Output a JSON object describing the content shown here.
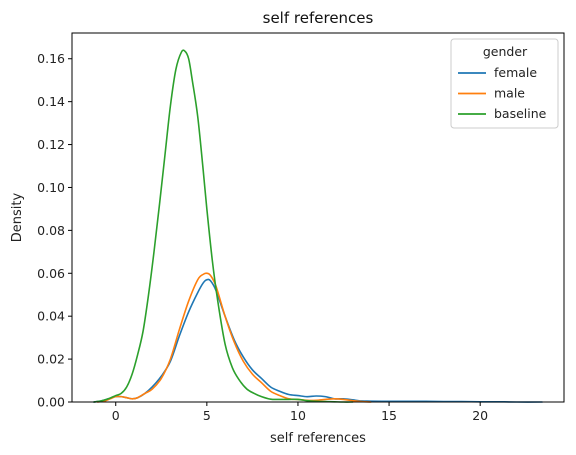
{
  "chart_data": {
    "type": "line",
    "title": "self references",
    "xlabel": "self references",
    "ylabel": "Density",
    "xlim": [
      -2.4,
      24.6
    ],
    "ylim": [
      0,
      0.172
    ],
    "xticks": [
      0,
      5,
      10,
      15,
      20
    ],
    "yticks": [
      0.0,
      0.02,
      0.04,
      0.06,
      0.08,
      0.1,
      0.12,
      0.14,
      0.16
    ],
    "ytick_labels": [
      "0.00",
      "0.02",
      "0.04",
      "0.06",
      "0.08",
      "0.10",
      "0.12",
      "0.14",
      "0.16"
    ],
    "grid": false,
    "legend": {
      "title": "gender",
      "placement": "top-right"
    },
    "series": [
      {
        "name": "female",
        "color": "#1f77b4",
        "x": [
          -1.2,
          -0.8,
          -0.4,
          0,
          0.3,
          0.6,
          0.9,
          1.2,
          1.6,
          2.0,
          2.5,
          3.0,
          3.5,
          4.0,
          4.5,
          4.8,
          5.0,
          5.2,
          5.5,
          6.0,
          6.5,
          7.0,
          7.5,
          8.0,
          8.5,
          9.0,
          9.5,
          10.0,
          10.5,
          11.0,
          11.5,
          12.0,
          12.5,
          13.0,
          13.5,
          14.0,
          15.0,
          16.0,
          17.0,
          18.0,
          19.0,
          20.0,
          21.0,
          22.0,
          23.4
        ],
        "y": [
          0.0,
          0.0005,
          0.0015,
          0.0025,
          0.0025,
          0.002,
          0.0015,
          0.002,
          0.004,
          0.007,
          0.012,
          0.019,
          0.031,
          0.042,
          0.051,
          0.0555,
          0.057,
          0.0565,
          0.052,
          0.04,
          0.029,
          0.021,
          0.015,
          0.011,
          0.007,
          0.005,
          0.0035,
          0.003,
          0.0025,
          0.0028,
          0.0025,
          0.0015,
          0.0015,
          0.001,
          0.0005,
          0.0004,
          0.0003,
          0.0003,
          0.0003,
          0.0002,
          0.0002,
          0.0001,
          0.0001,
          0.0,
          0.0
        ]
      },
      {
        "name": "male",
        "color": "#ff7f0e",
        "x": [
          -1.0,
          -0.6,
          -0.3,
          0,
          0.3,
          0.6,
          0.9,
          1.2,
          1.6,
          2.0,
          2.5,
          3.0,
          3.5,
          4.0,
          4.5,
          4.8,
          5.0,
          5.2,
          5.5,
          6.0,
          6.5,
          7.0,
          7.5,
          8.0,
          8.5,
          9.0,
          9.5,
          10.0,
          10.5,
          11.0,
          11.5,
          12.0,
          12.5,
          13.0,
          13.5,
          14.0
        ],
        "y": [
          0.0,
          0.0005,
          0.0015,
          0.0025,
          0.0025,
          0.002,
          0.0015,
          0.002,
          0.004,
          0.006,
          0.011,
          0.02,
          0.034,
          0.047,
          0.057,
          0.0595,
          0.06,
          0.059,
          0.054,
          0.04,
          0.028,
          0.019,
          0.013,
          0.009,
          0.005,
          0.003,
          0.0015,
          0.0012,
          0.0008,
          0.0008,
          0.0012,
          0.0015,
          0.0012,
          0.0006,
          0.0002,
          0.0
        ]
      },
      {
        "name": "baseline",
        "color": "#2ca02c",
        "x": [
          -1.2,
          -0.8,
          -0.4,
          0,
          0.3,
          0.6,
          0.9,
          1.2,
          1.5,
          1.8,
          2.1,
          2.4,
          2.7,
          3.0,
          3.3,
          3.6,
          3.8,
          4.0,
          4.2,
          4.5,
          4.8,
          5.0,
          5.3,
          5.6,
          6.0,
          6.4,
          6.8,
          7.2,
          7.6,
          8.0,
          8.5,
          9.0,
          9.5,
          10.0,
          10.5,
          11.0,
          11.5,
          12.0,
          12.5,
          13.0
        ],
        "y": [
          0.0,
          0.0005,
          0.0015,
          0.003,
          0.004,
          0.007,
          0.013,
          0.022,
          0.033,
          0.05,
          0.07,
          0.092,
          0.115,
          0.138,
          0.155,
          0.163,
          0.1635,
          0.16,
          0.15,
          0.133,
          0.108,
          0.09,
          0.066,
          0.047,
          0.027,
          0.016,
          0.01,
          0.006,
          0.004,
          0.0025,
          0.0013,
          0.0012,
          0.0012,
          0.0012,
          0.0006,
          0.0003,
          0.0002,
          0.0001,
          0.0,
          0.0
        ]
      }
    ]
  }
}
